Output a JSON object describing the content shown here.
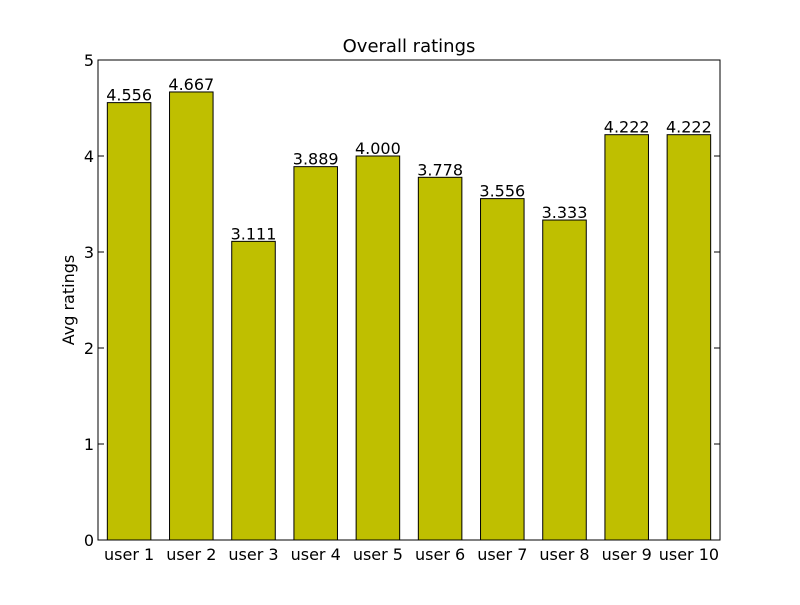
{
  "chart_data": {
    "type": "bar",
    "title": "Overall ratings",
    "xlabel": "",
    "ylabel": "Avg ratings",
    "categories": [
      "user 1",
      "user 2",
      "user 3",
      "user 4",
      "user 5",
      "user 6",
      "user 7",
      "user 8",
      "user 9",
      "user 10"
    ],
    "values": [
      4.556,
      4.667,
      3.111,
      3.889,
      4.0,
      3.778,
      3.556,
      3.333,
      4.222,
      4.222
    ],
    "value_labels": [
      "4.556",
      "4.667",
      "3.111",
      "3.889",
      "4.000",
      "3.778",
      "3.556",
      "3.333",
      "4.222",
      "4.222"
    ],
    "ylim": [
      0,
      5
    ],
    "yticks": [
      "0",
      "1",
      "2",
      "3",
      "4",
      "5"
    ],
    "bar_color": "#bfbf00",
    "grid": false,
    "legend": "none"
  }
}
